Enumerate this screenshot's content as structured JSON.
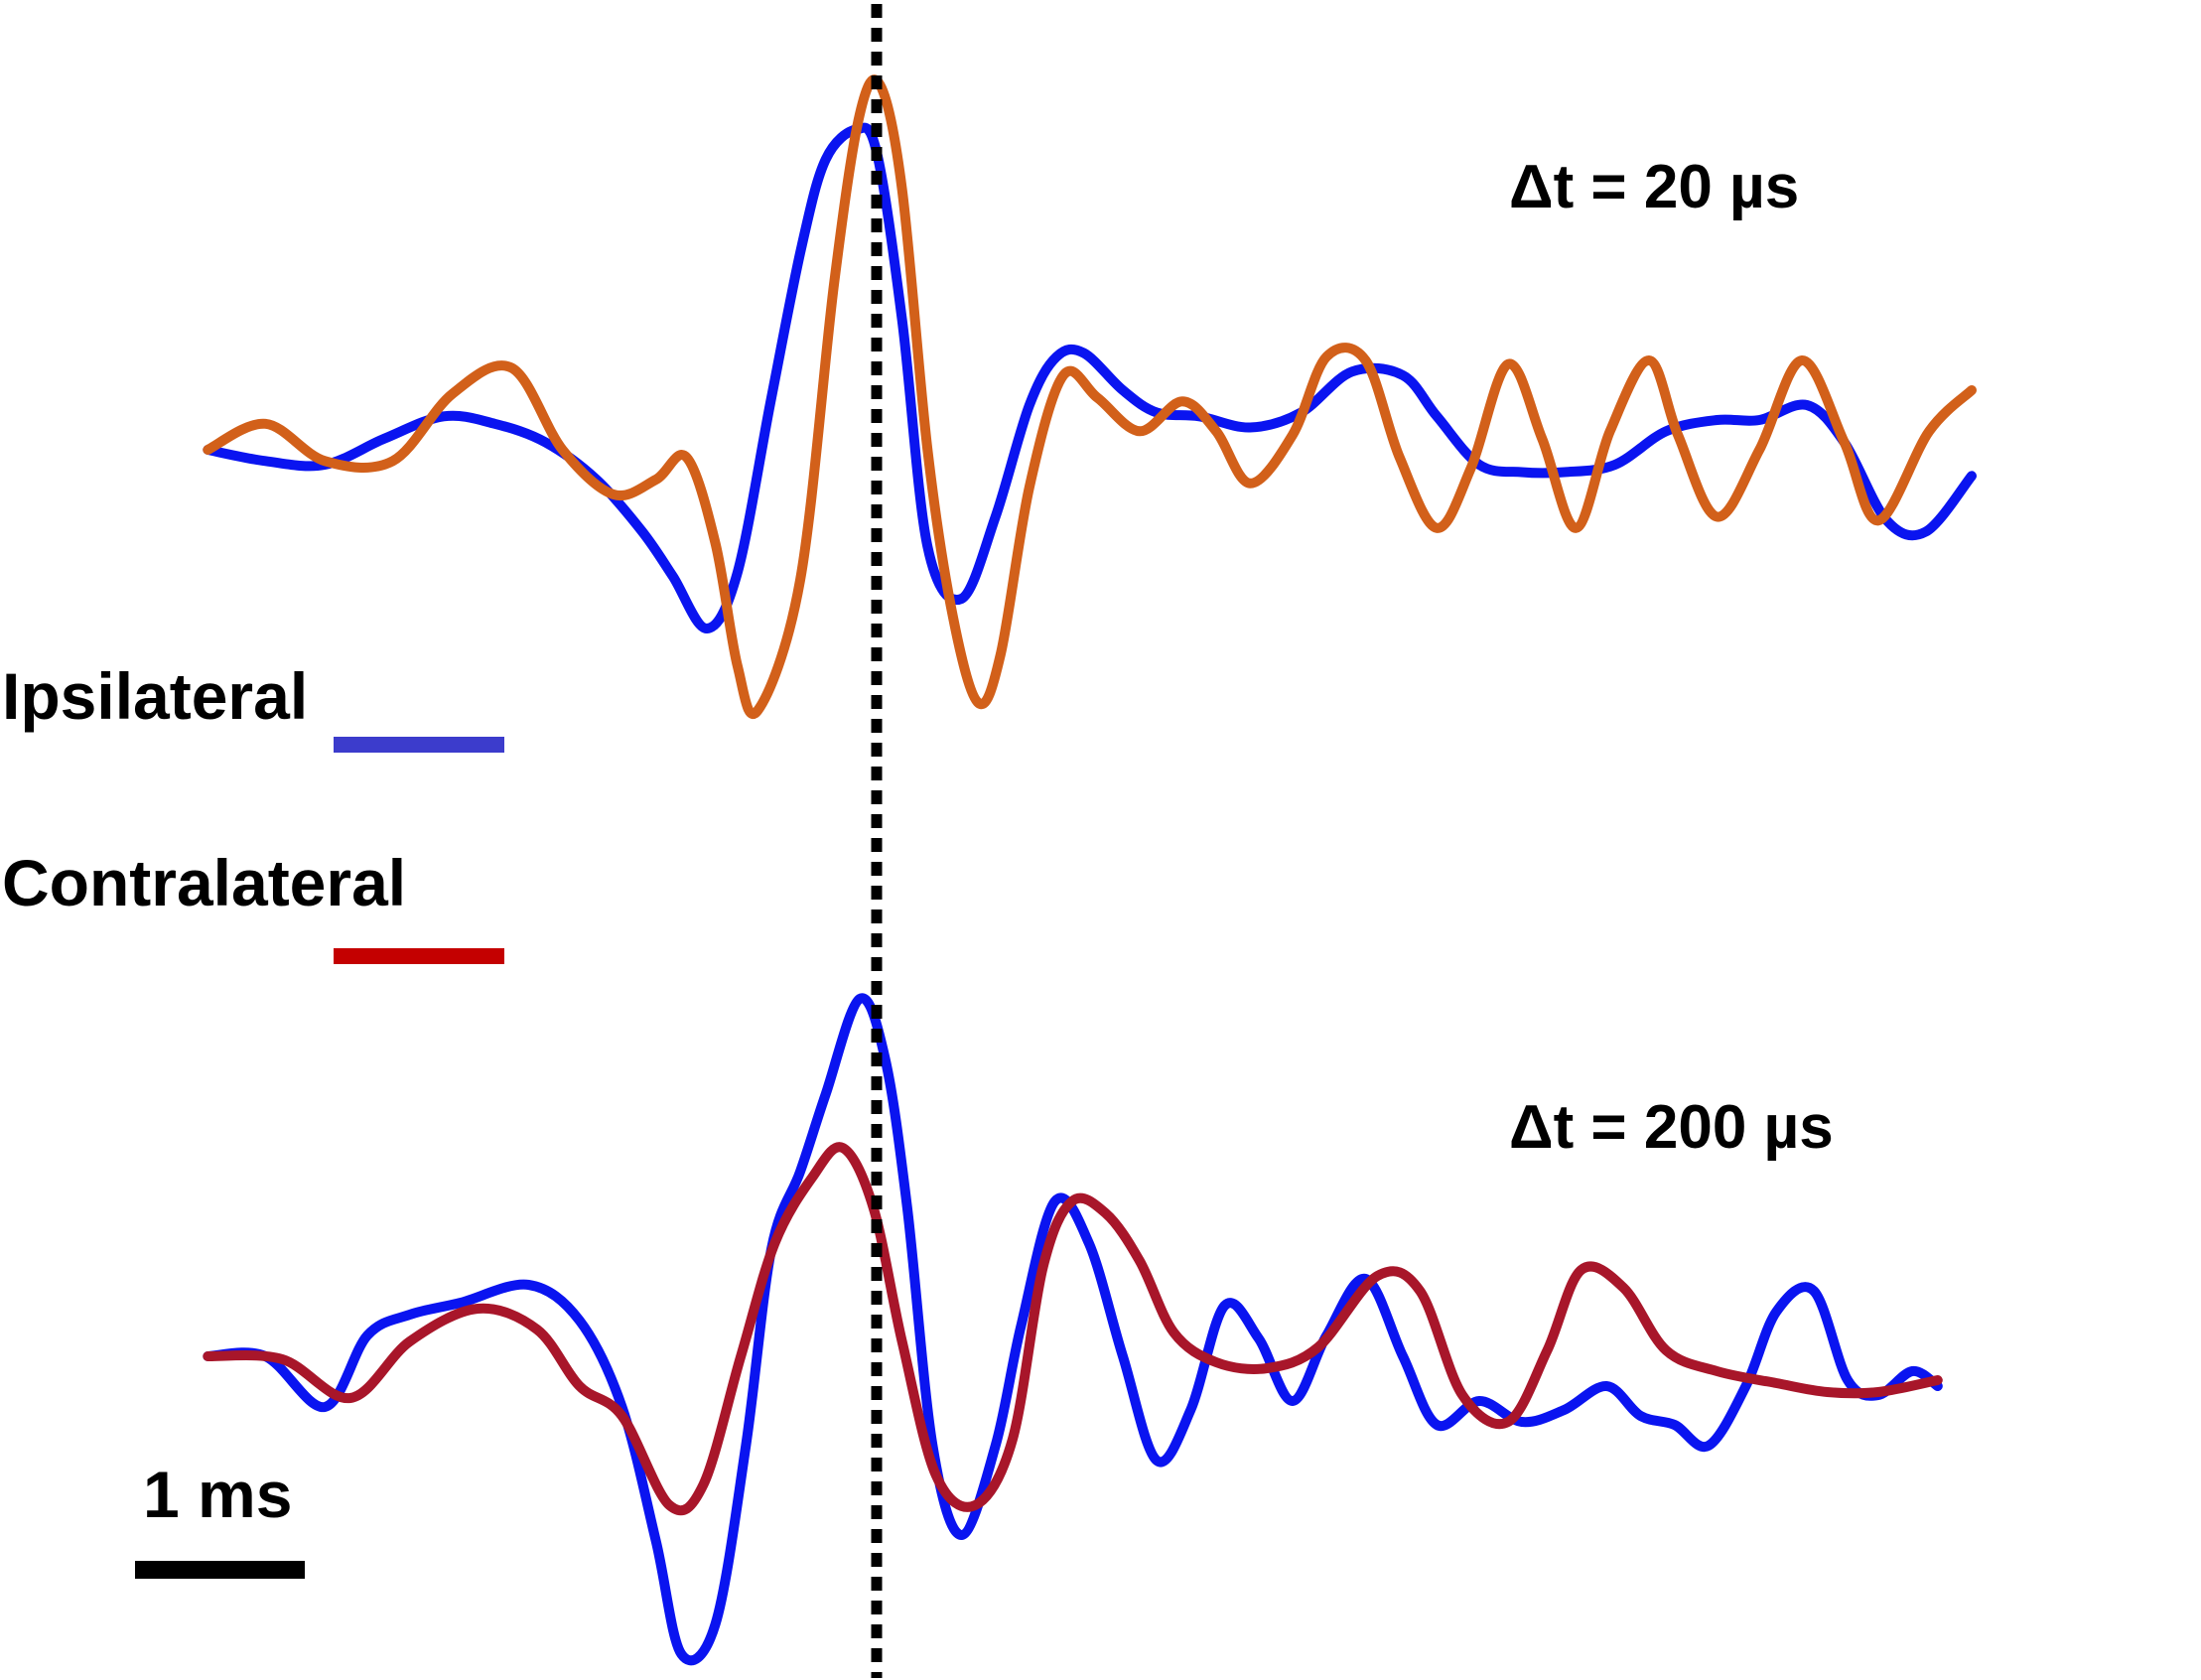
{
  "chart_data": [
    {
      "panel": "top",
      "type": "line",
      "annotation": "Δt = 20 µs",
      "x_unit": "ms",
      "series": [
        {
          "name": "Ipsilateral",
          "color": "#0a14f0",
          "x": [
            -3.94,
            -3.6,
            -3.25,
            -2.9,
            -2.55,
            -2.25,
            -1.95,
            -1.65,
            -1.38,
            -1.2,
            -1.0,
            -0.82,
            -0.62,
            -0.44,
            -0.3,
            -0.12,
            0.0,
            0.15,
            0.3,
            0.5,
            0.7,
            0.9,
            1.06,
            1.22,
            1.45,
            1.65,
            1.9,
            2.2,
            2.5,
            2.8,
            3.1,
            3.3,
            3.55,
            3.8,
            4.05,
            4.35,
            4.65,
            4.95,
            5.2,
            5.48,
            5.7,
            5.95,
            6.18,
            6.45
          ],
          "y": [
            0.0,
            -0.03,
            -0.04,
            0.03,
            0.09,
            0.07,
            0.02,
            -0.08,
            -0.22,
            -0.34,
            -0.48,
            -0.33,
            0.14,
            0.55,
            0.78,
            0.86,
            0.8,
            0.35,
            -0.26,
            -0.4,
            -0.18,
            0.12,
            0.25,
            0.26,
            0.16,
            0.1,
            0.09,
            0.06,
            0.1,
            0.21,
            0.2,
            0.09,
            -0.04,
            -0.06,
            -0.06,
            -0.04,
            0.05,
            0.08,
            0.08,
            0.12,
            0.02,
            -0.19,
            -0.22,
            -0.07
          ]
        },
        {
          "name": "Contralateral",
          "color": "#d2601a",
          "x": [
            -3.94,
            -3.6,
            -3.25,
            -2.85,
            -2.5,
            -2.15,
            -1.85,
            -1.55,
            -1.3,
            -1.12,
            -0.95,
            -0.82,
            -0.7,
            -0.45,
            -0.25,
            -0.1,
            0.02,
            0.15,
            0.3,
            0.45,
            0.6,
            0.73,
            0.9,
            1.1,
            1.3,
            1.55,
            1.8,
            2.0,
            2.2,
            2.45,
            2.65,
            2.88,
            3.08,
            3.3,
            3.5,
            3.72,
            3.92,
            4.12,
            4.32,
            4.55,
            4.72,
            4.95,
            5.2,
            5.45,
            5.7,
            5.9,
            6.2,
            6.45
          ],
          "y": [
            0.0,
            0.07,
            -0.03,
            -0.03,
            0.15,
            0.22,
            0.0,
            -0.12,
            -0.08,
            -0.02,
            -0.25,
            -0.58,
            -0.7,
            -0.35,
            0.45,
            0.9,
            0.98,
            0.7,
            0.0,
            -0.45,
            -0.68,
            -0.55,
            -0.1,
            0.2,
            0.14,
            0.05,
            0.13,
            0.05,
            -0.09,
            0.04,
            0.25,
            0.24,
            -0.02,
            -0.21,
            -0.05,
            0.23,
            0.03,
            -0.21,
            0.05,
            0.24,
            0.04,
            -0.18,
            0.0,
            0.24,
            0.02,
            -0.19,
            0.05,
            0.16
          ]
        }
      ]
    },
    {
      "panel": "bottom",
      "type": "line",
      "annotation": "Δt = 200 µs",
      "x_unit": "ms",
      "series": [
        {
          "name": "Ipsilateral",
          "color": "#0a14f0",
          "x": [
            -3.94,
            -3.6,
            -3.25,
            -3.0,
            -2.75,
            -2.45,
            -2.05,
            -1.75,
            -1.5,
            -1.3,
            -1.15,
            -0.95,
            -0.77,
            -0.62,
            -0.45,
            -0.3,
            -0.1,
            0.05,
            0.18,
            0.33,
            0.5,
            0.7,
            0.85,
            1.05,
            1.25,
            1.45,
            1.65,
            1.85,
            2.05,
            2.25,
            2.45,
            2.65,
            2.88,
            3.1,
            3.3,
            3.55,
            3.8,
            4.05,
            4.3,
            4.5,
            4.7,
            4.9,
            5.12,
            5.3,
            5.52,
            5.72,
            5.9,
            6.1,
            6.25
          ],
          "y": [
            0.0,
            0.0,
            -0.17,
            0.07,
            0.14,
            0.18,
            0.24,
            0.12,
            -0.17,
            -0.62,
            -1.0,
            -0.9,
            -0.3,
            0.36,
            0.62,
            0.88,
            1.2,
            1.0,
            0.5,
            -0.3,
            -0.6,
            -0.3,
            0.1,
            0.52,
            0.38,
            0.0,
            -0.35,
            -0.18,
            0.17,
            0.06,
            -0.15,
            0.07,
            0.26,
            0.0,
            -0.23,
            -0.15,
            -0.22,
            -0.18,
            -0.1,
            -0.2,
            -0.23,
            -0.3,
            -0.1,
            0.15,
            0.22,
            -0.08,
            -0.13,
            -0.05,
            -0.1
          ]
        },
        {
          "name": "Contralateral",
          "color": "#a8162a",
          "x": [
            -3.94,
            -3.5,
            -3.1,
            -2.75,
            -2.35,
            -2.0,
            -1.75,
            -1.5,
            -1.22,
            -1.02,
            -0.8,
            -0.6,
            -0.38,
            -0.2,
            -0.02,
            0.15,
            0.35,
            0.58,
            0.8,
            0.98,
            1.15,
            1.35,
            1.55,
            1.75,
            2.0,
            2.3,
            2.6,
            2.95,
            3.2,
            3.45,
            3.72,
            3.95,
            4.15,
            4.4,
            4.65,
            4.95,
            5.3,
            5.6,
            5.9,
            6.25
          ],
          "y": [
            0.0,
            -0.01,
            -0.14,
            0.05,
            0.16,
            0.09,
            -0.1,
            -0.2,
            -0.5,
            -0.43,
            0.0,
            0.38,
            0.6,
            0.7,
            0.5,
            0.05,
            -0.4,
            -0.5,
            -0.28,
            0.3,
            0.52,
            0.48,
            0.32,
            0.08,
            -0.02,
            -0.04,
            0.03,
            0.27,
            0.22,
            -0.13,
            -0.22,
            0.02,
            0.29,
            0.23,
            0.02,
            -0.05,
            -0.09,
            -0.12,
            -0.12,
            -0.08
          ]
        }
      ]
    }
  ],
  "legend": {
    "ipsilateral": {
      "label": "Ipsilateral",
      "color": "#3c3ccc"
    },
    "contralateral": {
      "label": "Contralateral",
      "color": "#c40000"
    }
  },
  "annotations": {
    "top_dt": "Δt = 20 µs",
    "bottom_dt": "Δt = 200 µs"
  },
  "scale_bar": {
    "label": "1 ms",
    "length_ms": 1
  },
  "reference_line": {
    "x_ms": 0,
    "style": "dotted",
    "color": "#000000"
  }
}
